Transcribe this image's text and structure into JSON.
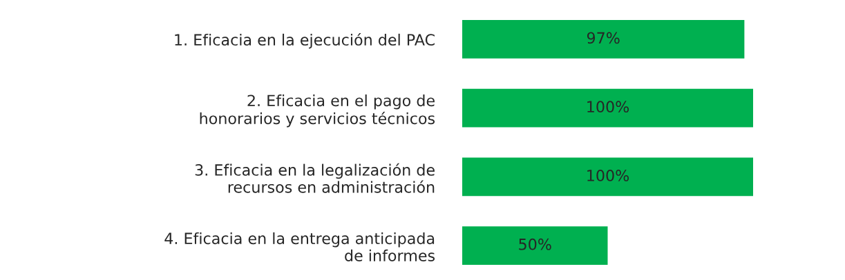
{
  "chart_data": {
    "type": "bar",
    "orientation": "horizontal",
    "categories": [
      "1. Eficacia en la ejecución del PAC",
      "2. Eficacia en el pago de\nhonorarios y servicios técnicos",
      "3. Eficacia en la legalización de\nrecursos en administración",
      "4. Eficacia en la entrega anticipada\nde informes"
    ],
    "values": [
      97,
      100,
      100,
      50
    ],
    "value_labels": [
      "97%",
      "100%",
      "100%",
      "50%"
    ],
    "color": "#00b050",
    "grid": false,
    "legend": false
  }
}
